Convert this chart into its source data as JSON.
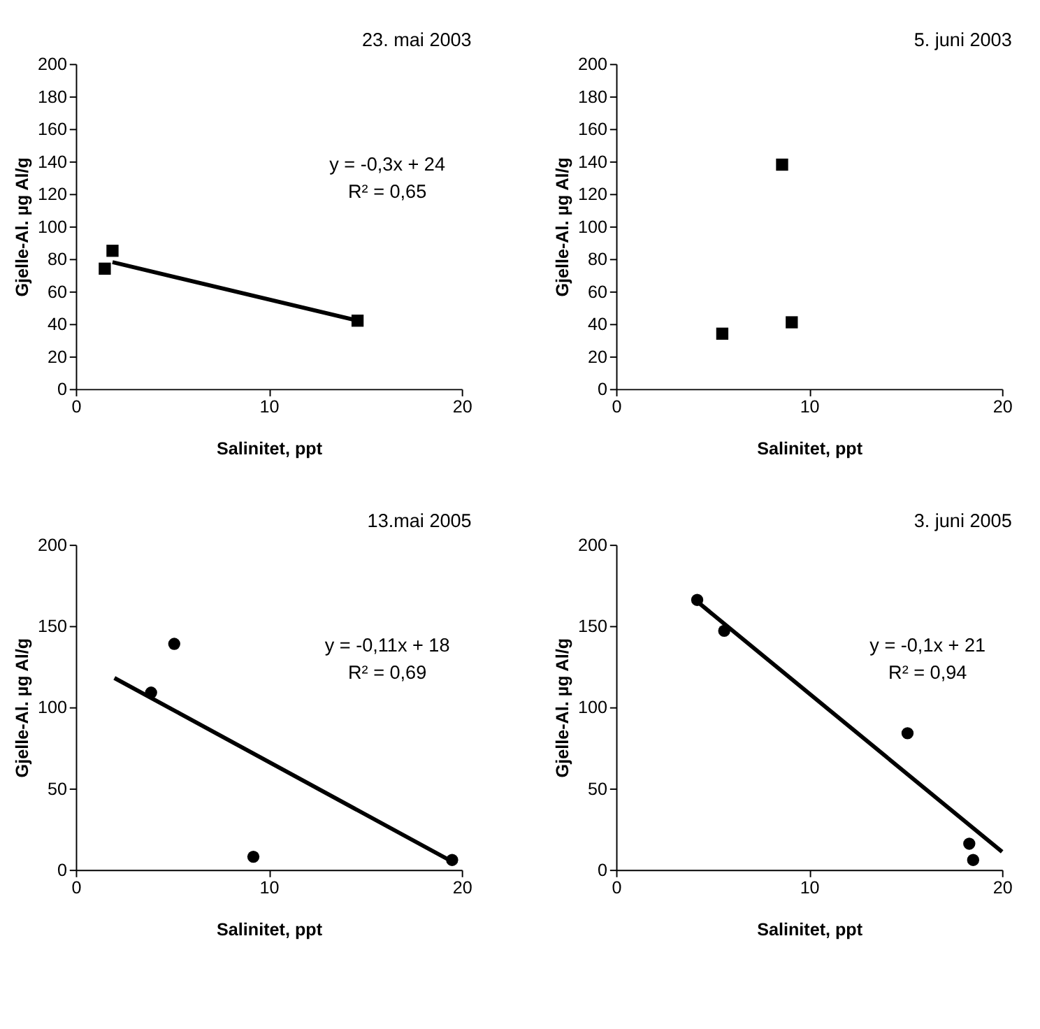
{
  "chart_data": [
    {
      "type": "scatter",
      "title": "23. mai 2003",
      "xlabel": "Salinitet, ppt",
      "ylabel": "Gjelle-Al. µg Al/g",
      "xlim": [
        0,
        20
      ],
      "xticks": [
        0,
        10,
        20
      ],
      "ylim": [
        0,
        200
      ],
      "yticks": [
        0,
        20,
        40,
        60,
        80,
        100,
        120,
        140,
        160,
        180,
        200
      ],
      "grid": false,
      "series": [
        {
          "marker": "square",
          "color": "#000000",
          "x": [
            1.5,
            1.9,
            14.6
          ],
          "values": [
            74,
            85,
            42
          ]
        },
        {
          "type": "line",
          "marker": "none",
          "color": "#000000",
          "x": [
            1.9,
            14.6
          ],
          "values": [
            78,
            42
          ]
        }
      ],
      "annotations": [
        "y = -0,3x + 24",
        "R² = 0,65"
      ]
    },
    {
      "type": "scatter",
      "title": "5. juni 2003",
      "xlabel": "Salinitet, ppt",
      "ylabel": "Gjelle-Al. µg Al/g",
      "xlim": [
        0,
        20
      ],
      "xticks": [
        0,
        10,
        20
      ],
      "ylim": [
        0,
        200
      ],
      "yticks": [
        0,
        20,
        40,
        60,
        80,
        100,
        120,
        140,
        160,
        180,
        200
      ],
      "grid": false,
      "series": [
        {
          "marker": "square",
          "color": "#000000",
          "x": [
            5.5,
            8.6,
            9.1
          ],
          "values": [
            34,
            138,
            41
          ]
        }
      ]
    },
    {
      "type": "scatter",
      "title": "13.mai 2005",
      "xlabel": "Salinitet, ppt",
      "ylabel": "Gjelle-Al. µg Al/g",
      "xlim": [
        0,
        20
      ],
      "xticks": [
        0,
        10,
        20
      ],
      "ylim": [
        0,
        200
      ],
      "yticks": [
        0,
        50,
        100,
        150,
        200
      ],
      "grid": false,
      "series": [
        {
          "marker": "circle",
          "color": "#000000",
          "x": [
            3.9,
            5.1,
            9.2,
            19.5
          ],
          "values": [
            109,
            139,
            8,
            6
          ]
        },
        {
          "type": "line",
          "marker": "none",
          "color": "#000000",
          "x": [
            2,
            19.5
          ],
          "values": [
            118,
            5
          ]
        }
      ],
      "annotations": [
        "y = -0,11x + 18",
        "R² = 0,69"
      ]
    },
    {
      "type": "scatter",
      "title": "3. juni 2005",
      "xlabel": "Salinitet, ppt",
      "ylabel": "Gjelle-Al. µg Al/g",
      "xlim": [
        0,
        20
      ],
      "xticks": [
        0,
        10,
        20
      ],
      "ylim": [
        0,
        200
      ],
      "yticks": [
        0,
        50,
        100,
        150,
        200
      ],
      "grid": false,
      "series": [
        {
          "marker": "circle",
          "color": "#000000",
          "x": [
            4.2,
            5.6,
            15.1,
            18.3,
            18.5
          ],
          "values": [
            166,
            147,
            84,
            16,
            6
          ]
        },
        {
          "type": "line",
          "marker": "none",
          "color": "#000000",
          "x": [
            4.2,
            20
          ],
          "values": [
            165,
            11
          ]
        }
      ],
      "annotations": [
        "y = -0,1x + 21",
        "R² = 0,94"
      ]
    }
  ]
}
